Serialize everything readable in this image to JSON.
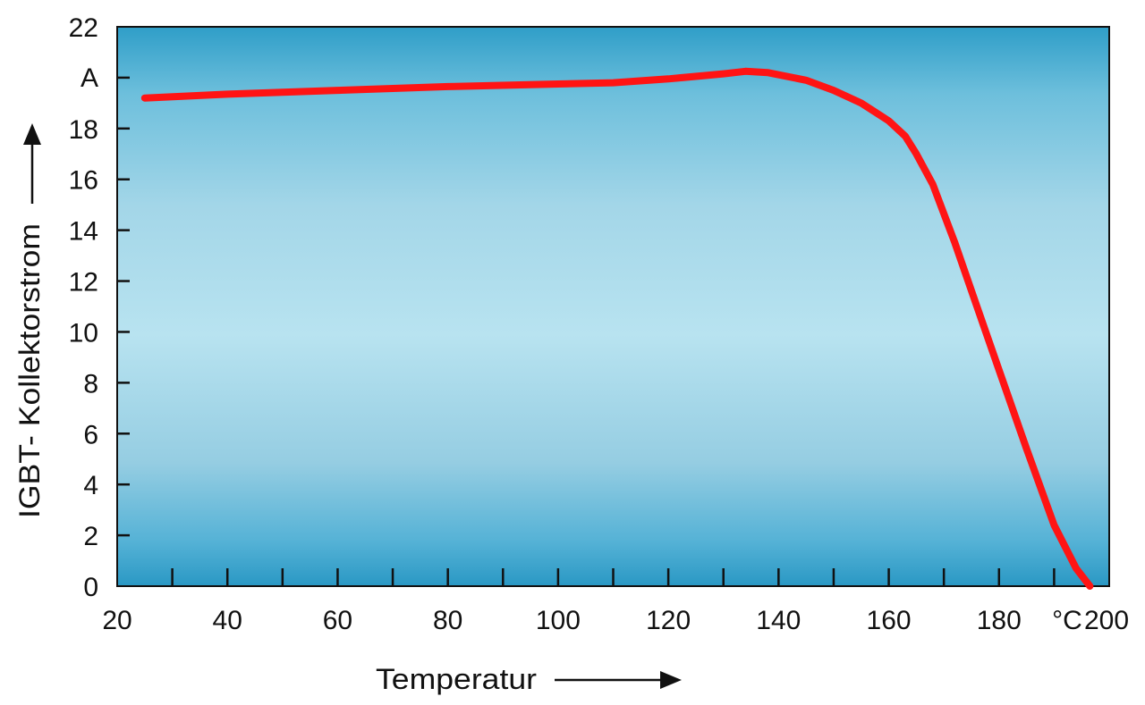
{
  "chart_data": {
    "type": "line",
    "xlabel": "Temperatur",
    "ylabel": "IGBT- Kollektorstrom",
    "x_unit": "°C",
    "y_unit": "A",
    "xlim": [
      20,
      200
    ],
    "ylim": [
      0,
      22
    ],
    "x_ticks": [
      20,
      40,
      60,
      80,
      100,
      120,
      140,
      160,
      180,
      200
    ],
    "x_tick_labels": [
      "20",
      "40",
      "60",
      "80",
      "100",
      "120",
      "140",
      "160",
      "180",
      "200"
    ],
    "y_ticks": [
      0,
      2,
      4,
      6,
      8,
      10,
      12,
      14,
      16,
      18,
      22
    ],
    "y_tick_labels": [
      "0",
      "2",
      "4",
      "6",
      "8",
      "10",
      "12",
      "14",
      "16",
      "18",
      "22"
    ],
    "grid": false,
    "series": [
      {
        "color": "#ff1414",
        "x": [
          25,
          40,
          60,
          80,
          100,
          110,
          120,
          130,
          134,
          138,
          145,
          150,
          155,
          160,
          163,
          165,
          168,
          172,
          176,
          180,
          185,
          190,
          194,
          196.5
        ],
        "y": [
          19.2,
          19.35,
          19.5,
          19.65,
          19.75,
          19.8,
          19.95,
          20.15,
          20.25,
          20.2,
          19.9,
          19.5,
          19.0,
          18.3,
          17.7,
          17.0,
          15.8,
          13.5,
          11.0,
          8.5,
          5.4,
          2.4,
          0.7,
          0.0
        ]
      }
    ]
  }
}
